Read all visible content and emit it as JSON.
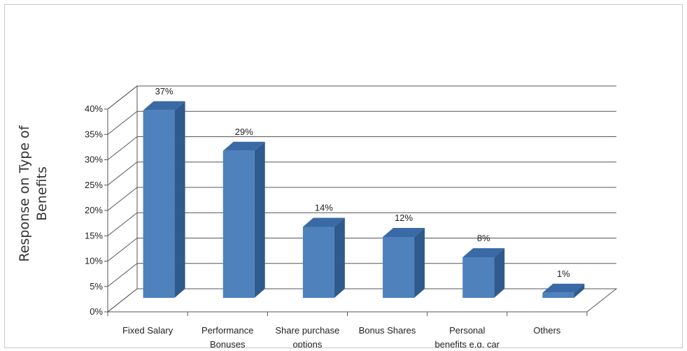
{
  "chart_data": {
    "type": "bar",
    "title": "",
    "xlabel": "",
    "ylabel_lines": [
      "Response on Type of",
      "Benefits"
    ],
    "categories": [
      [
        "Fixed Salary"
      ],
      [
        "Performance",
        "Bonuses"
      ],
      [
        "Share purchase",
        "options"
      ],
      [
        "Bonus Shares"
      ],
      [
        "Personal",
        "benefits e.g. car"
      ],
      [
        "Others"
      ]
    ],
    "values": [
      37,
      29,
      14,
      12,
      8,
      1
    ],
    "data_labels": [
      "37%",
      "29%",
      "14%",
      "12%",
      "8%",
      "1%"
    ],
    "ylim": [
      0,
      40
    ],
    "yticks": [
      "0%",
      "5%",
      "10%",
      "15%",
      "20%",
      "25%",
      "30%",
      "35%",
      "40%"
    ],
    "grid": true,
    "three_d": true,
    "colors": {
      "bar_front": "#4f81bd",
      "bar_side": "#2f5a8c",
      "bar_top": "#3a6aa6",
      "grid": "#555555"
    }
  }
}
